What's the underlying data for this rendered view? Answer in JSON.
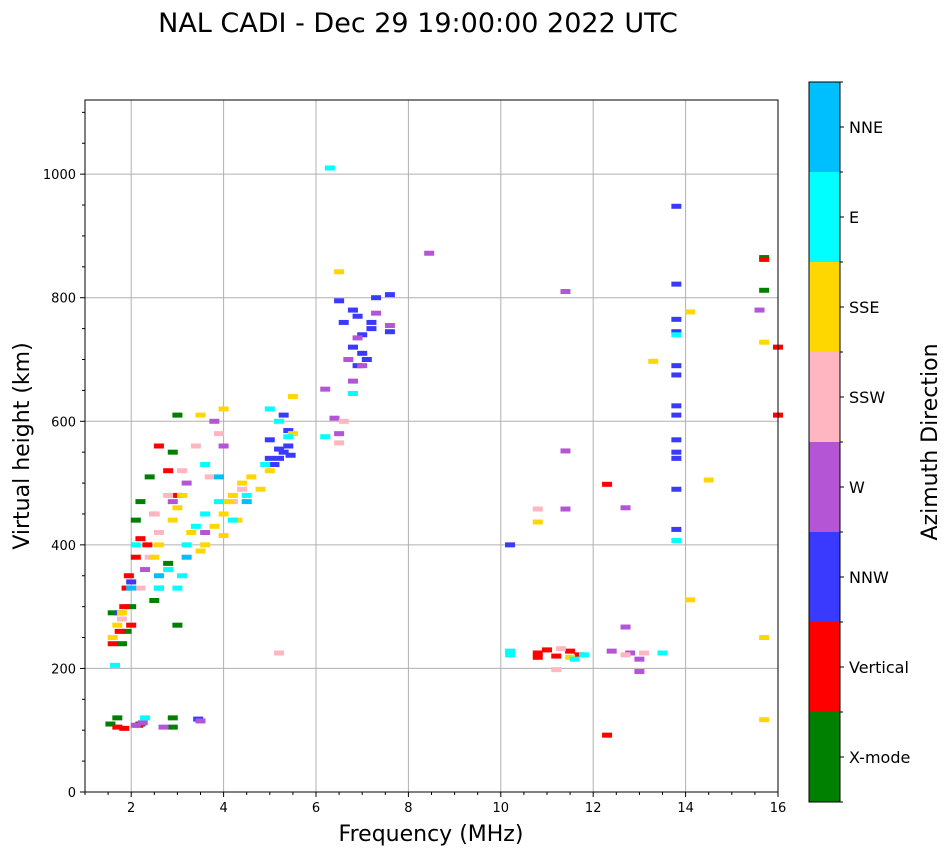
{
  "chart_data": {
    "type": "scatter",
    "title": "NAL CADI - Dec 29 19:00:00 2022 UTC",
    "xlabel": "Frequency (MHz)",
    "ylabel": "Virtual height (km)",
    "xlim": [
      1,
      16
    ],
    "ylim": [
      0,
      1120
    ],
    "xticks": [
      2,
      4,
      6,
      8,
      10,
      12,
      14,
      16
    ],
    "yticks": [
      0,
      200,
      400,
      600,
      800,
      1000
    ],
    "grid": true,
    "colorbar": {
      "label": "Azimuth Direction",
      "categories": [
        {
          "name": "X-mode",
          "color": "#008000"
        },
        {
          "name": "Vertical",
          "color": "#ff0000"
        },
        {
          "name": "NNW",
          "color": "#3a3aff"
        },
        {
          "name": "W",
          "color": "#b455d6"
        },
        {
          "name": "SSW",
          "color": "#ffb6c1"
        },
        {
          "name": "SSE",
          "color": "#ffd700"
        },
        {
          "name": "E",
          "color": "#00ffff"
        },
        {
          "name": "NNE",
          "color": "#00bfff"
        }
      ]
    },
    "series": [
      {
        "name": "X-mode",
        "points": [
          [
            1.55,
            110
          ],
          [
            1.7,
            120
          ],
          [
            2.2,
            110
          ],
          [
            2.9,
            105
          ],
          [
            2.9,
            120
          ],
          [
            3.0,
            270
          ],
          [
            2.5,
            310
          ],
          [
            2.1,
            440
          ],
          [
            2.4,
            510
          ],
          [
            2.9,
            550
          ],
          [
            3.0,
            610
          ],
          [
            1.9,
            260
          ],
          [
            2.8,
            370
          ],
          [
            1.6,
            290
          ],
          [
            1.8,
            240
          ],
          [
            15.7,
            812
          ],
          [
            15.7,
            865
          ],
          [
            2.2,
            470
          ],
          [
            2.6,
            330
          ],
          [
            2.0,
            300
          ]
        ]
      },
      {
        "name": "Vertical",
        "points": [
          [
            1.7,
            105
          ],
          [
            1.85,
            103
          ],
          [
            2.15,
            108
          ],
          [
            1.6,
            240
          ],
          [
            1.75,
            260
          ],
          [
            1.85,
            300
          ],
          [
            1.9,
            330
          ],
          [
            2.1,
            380
          ],
          [
            2.2,
            410
          ],
          [
            2.5,
            450
          ],
          [
            2.6,
            560
          ],
          [
            2.8,
            520
          ],
          [
            3.0,
            480
          ],
          [
            2.35,
            400
          ],
          [
            1.95,
            350
          ],
          [
            10.8,
            225
          ],
          [
            10.8,
            218
          ],
          [
            11.0,
            230
          ],
          [
            11.2,
            220
          ],
          [
            11.5,
            228
          ],
          [
            11.7,
            222
          ],
          [
            12.3,
            498
          ],
          [
            12.3,
            92
          ],
          [
            15.7,
            862
          ],
          [
            16.0,
            720
          ],
          [
            16.0,
            610
          ],
          [
            2.0,
            270
          ]
        ]
      },
      {
        "name": "NNW",
        "points": [
          [
            3.45,
            118
          ],
          [
            5.4,
            560
          ],
          [
            5.3,
            550
          ],
          [
            5.2,
            540
          ],
          [
            5.1,
            530
          ],
          [
            5.45,
            545
          ],
          [
            5.4,
            585
          ],
          [
            5.0,
            570
          ],
          [
            5.3,
            610
          ],
          [
            6.6,
            760
          ],
          [
            6.8,
            780
          ],
          [
            6.9,
            770
          ],
          [
            7.0,
            740
          ],
          [
            7.2,
            750
          ],
          [
            7.1,
            700
          ],
          [
            7.0,
            710
          ],
          [
            7.2,
            760
          ],
          [
            6.8,
            720
          ],
          [
            7.3,
            800
          ],
          [
            7.6,
            805
          ],
          [
            7.6,
            745
          ],
          [
            6.5,
            795
          ],
          [
            6.9,
            690
          ],
          [
            10.2,
            400
          ],
          [
            13.8,
            948
          ],
          [
            13.8,
            822
          ],
          [
            13.8,
            765
          ],
          [
            13.8,
            745
          ],
          [
            13.8,
            690
          ],
          [
            13.8,
            675
          ],
          [
            13.8,
            625
          ],
          [
            13.8,
            610
          ],
          [
            13.8,
            570
          ],
          [
            13.8,
            550
          ],
          [
            13.8,
            540
          ],
          [
            13.8,
            490
          ],
          [
            13.8,
            425
          ],
          [
            1.75,
            290
          ],
          [
            2.0,
            340
          ],
          [
            5.0,
            540
          ],
          [
            5.2,
            555
          ]
        ]
      },
      {
        "name": "W",
        "points": [
          [
            2.1,
            108
          ],
          [
            2.25,
            112
          ],
          [
            2.7,
            105
          ],
          [
            3.5,
            115
          ],
          [
            6.2,
            652
          ],
          [
            6.4,
            605
          ],
          [
            6.5,
            580
          ],
          [
            6.8,
            665
          ],
          [
            7.0,
            690
          ],
          [
            6.7,
            700
          ],
          [
            6.9,
            735
          ],
          [
            7.3,
            775
          ],
          [
            7.6,
            755
          ],
          [
            8.45,
            872
          ],
          [
            11.4,
            810
          ],
          [
            11.4,
            552
          ],
          [
            11.4,
            458
          ],
          [
            12.7,
            460
          ],
          [
            12.7,
            267
          ],
          [
            12.4,
            228
          ],
          [
            12.8,
            225
          ],
          [
            13.0,
            215
          ],
          [
            13.0,
            195
          ],
          [
            15.6,
            780
          ],
          [
            2.9,
            470
          ],
          [
            3.2,
            500
          ],
          [
            3.6,
            420
          ],
          [
            2.3,
            360
          ],
          [
            4.0,
            560
          ],
          [
            3.8,
            600
          ]
        ]
      },
      {
        "name": "SSW",
        "points": [
          [
            2.4,
            380
          ],
          [
            2.5,
            450
          ],
          [
            2.6,
            420
          ],
          [
            2.8,
            480
          ],
          [
            3.1,
            520
          ],
          [
            3.4,
            560
          ],
          [
            3.9,
            580
          ],
          [
            4.2,
            470
          ],
          [
            5.2,
            225
          ],
          [
            6.5,
            565
          ],
          [
            6.6,
            600
          ],
          [
            10.8,
            458
          ],
          [
            11.3,
            232
          ],
          [
            11.2,
            198
          ],
          [
            12.7,
            222
          ],
          [
            13.1,
            225
          ],
          [
            2.2,
            330
          ],
          [
            1.8,
            280
          ],
          [
            3.7,
            510
          ],
          [
            4.4,
            490
          ]
        ]
      },
      {
        "name": "SSE",
        "points": [
          [
            1.6,
            250
          ],
          [
            1.7,
            270
          ],
          [
            1.8,
            290
          ],
          [
            2.5,
            380
          ],
          [
            2.6,
            400
          ],
          [
            2.9,
            440
          ],
          [
            3.0,
            460
          ],
          [
            3.1,
            480
          ],
          [
            3.3,
            420
          ],
          [
            3.5,
            390
          ],
          [
            3.6,
            400
          ],
          [
            3.8,
            430
          ],
          [
            4.0,
            450
          ],
          [
            4.1,
            470
          ],
          [
            4.2,
            480
          ],
          [
            4.4,
            500
          ],
          [
            4.6,
            510
          ],
          [
            4.8,
            490
          ],
          [
            5.0,
            520
          ],
          [
            5.5,
            580
          ],
          [
            5.5,
            640
          ],
          [
            6.5,
            842
          ],
          [
            10.8,
            437
          ],
          [
            11.5,
            218
          ],
          [
            13.3,
            697
          ],
          [
            14.1,
            311
          ],
          [
            14.1,
            777
          ],
          [
            14.5,
            505
          ],
          [
            15.7,
            728
          ],
          [
            15.7,
            250
          ],
          [
            15.7,
            117
          ],
          [
            4.0,
            415
          ],
          [
            3.5,
            610
          ],
          [
            4.0,
            620
          ],
          [
            4.3,
            440
          ]
        ]
      },
      {
        "name": "E",
        "points": [
          [
            1.65,
            205
          ],
          [
            2.3,
            120
          ],
          [
            3.0,
            330
          ],
          [
            3.1,
            350
          ],
          [
            2.8,
            360
          ],
          [
            3.2,
            400
          ],
          [
            3.4,
            430
          ],
          [
            3.6,
            450
          ],
          [
            3.9,
            470
          ],
          [
            4.2,
            440
          ],
          [
            4.5,
            480
          ],
          [
            4.9,
            530
          ],
          [
            5.0,
            620
          ],
          [
            5.2,
            600
          ],
          [
            5.4,
            575
          ],
          [
            6.2,
            575
          ],
          [
            6.8,
            645
          ],
          [
            6.3,
            1010
          ],
          [
            10.2,
            228
          ],
          [
            10.2,
            222
          ],
          [
            11.8,
            222
          ],
          [
            11.6,
            215
          ],
          [
            13.8,
            740
          ],
          [
            13.8,
            407
          ],
          [
            13.5,
            225
          ],
          [
            2.6,
            330
          ],
          [
            3.6,
            530
          ],
          [
            2.1,
            400
          ]
        ]
      },
      {
        "name": "NNE",
        "points": [
          [
            2.0,
            330
          ],
          [
            2.6,
            350
          ],
          [
            3.2,
            380
          ],
          [
            3.9,
            510
          ],
          [
            4.5,
            470
          ]
        ]
      }
    ]
  }
}
